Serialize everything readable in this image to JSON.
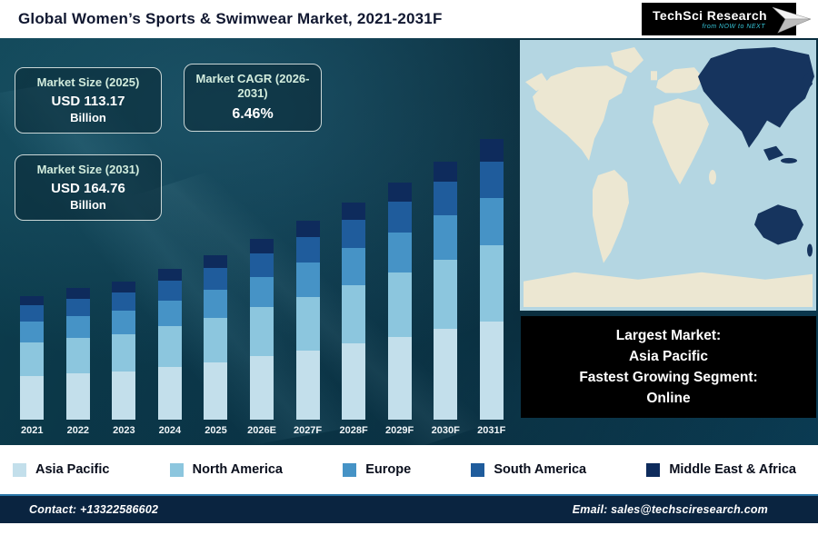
{
  "header": {
    "title": "Global Women’s Sports & Swimwear Market, 2021-2031F",
    "logo": {
      "brand": "TechSci Research",
      "tagline": "from NOW to NEXT"
    }
  },
  "info_boxes": [
    {
      "title": "Market Size (2025)",
      "value": "USD 113.17",
      "unit": "Billion"
    },
    {
      "title": "Market CAGR (2026-2031)",
      "value": "6.46%",
      "unit": ""
    },
    {
      "title": "Market Size (2031)",
      "value": "USD 164.76",
      "unit": "Billion"
    }
  ],
  "chart_data": {
    "type": "bar",
    "stacked": true,
    "title": "Global Women’s Sports & Swimwear Market, 2021-2031F",
    "xlabel": "",
    "ylabel": "",
    "grid": false,
    "legend_position": "bottom",
    "ylim": [
      40,
      170
    ],
    "categories": [
      "2021",
      "2022",
      "2023",
      "2024",
      "2025",
      "2026E",
      "2027F",
      "2028F",
      "2029F",
      "2030F",
      "2031F"
    ],
    "series": [
      {
        "name": "Asia Pacific",
        "color": "#c3dfeb",
        "values": [
          33.3,
          34.5,
          35.5,
          37.5,
          39.6,
          42.2,
          44.9,
          47.8,
          50.9,
          54.2,
          57.7
        ]
      },
      {
        "name": "North America",
        "color": "#8cc6de",
        "values": [
          25.7,
          26.6,
          27.4,
          28.9,
          30.6,
          32.5,
          34.6,
          36.9,
          39.3,
          41.8,
          44.5
        ]
      },
      {
        "name": "Europe",
        "color": "#4693c6",
        "values": [
          16.2,
          16.7,
          17.3,
          18.2,
          19.2,
          20.5,
          21.8,
          23.2,
          24.7,
          26.3,
          28.0
        ]
      },
      {
        "name": "South America",
        "color": "#1f5c9c",
        "values": [
          12.4,
          12.8,
          13.2,
          13.9,
          14.7,
          15.7,
          16.7,
          17.8,
          18.9,
          20.1,
          21.4
        ]
      },
      {
        "name": "Middle East & Africa",
        "color": "#0e2b5c",
        "values": [
          7.4,
          7.9,
          8.1,
          8.5,
          9.07,
          9.6,
          10.3,
          10.9,
          11.6,
          12.4,
          13.16
        ]
      }
    ],
    "anchors": {
      "market_size_2025_usd_billion": 113.17,
      "market_size_2031_usd_billion": 164.76,
      "cagr_2026_2031_pct": 6.46
    }
  },
  "callout": {
    "lines": [
      "Largest Market:",
      "Asia Pacific",
      "Fastest Growing Segment:",
      "Online"
    ]
  },
  "footer": {
    "contact": "Contact: +13322586602",
    "email": "Email: sales@techsciresearch.com"
  }
}
